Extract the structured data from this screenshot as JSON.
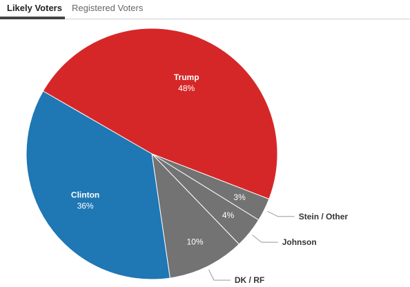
{
  "tabs": [
    {
      "label": "Likely Voters",
      "active": true
    },
    {
      "label": "Registered Voters",
      "active": false
    }
  ],
  "chart_data": {
    "type": "pie",
    "title": "",
    "start_angle_deg": -150,
    "slices": [
      {
        "label": "Trump",
        "value": 48,
        "pct_label": "48%",
        "color": "#d62728",
        "label_position": "inside"
      },
      {
        "label": "Stein / Other",
        "value": 3,
        "pct_label": "3%",
        "color": "#737373",
        "label_position": "outside"
      },
      {
        "label": "Johnson",
        "value": 4,
        "pct_label": "4%",
        "color": "#737373",
        "label_position": "outside"
      },
      {
        "label": "DK / RF",
        "value": 10,
        "pct_label": "10%",
        "color": "#737373",
        "label_position": "outside"
      },
      {
        "label": "Clinton",
        "value": 36,
        "pct_label": "36%",
        "color": "#1f77b4",
        "label_position": "inside"
      }
    ]
  }
}
